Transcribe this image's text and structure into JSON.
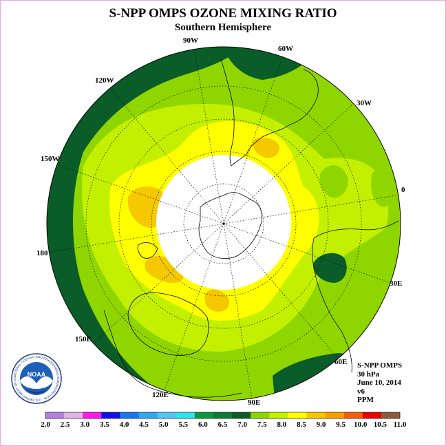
{
  "title": "S-NPP OMPS OZONE MIXING RATIO",
  "subtitle": "Southern Hemisphere",
  "longitude_labels": {
    "w90": "90W",
    "w60": "60W",
    "w30": "30W",
    "w120": "120W",
    "w150": "150W",
    "zero": "0",
    "d180": "180",
    "e30": "30E",
    "e60": "60E",
    "e90": "90E",
    "e120": "120E",
    "e150": "150E"
  },
  "info": {
    "instrument": "S-NPP OMPS",
    "level": "30 hPa",
    "date": "June 10, 2014",
    "version": "v6",
    "units": "PPM"
  },
  "logo": {
    "text": "NOAA",
    "ring_text": "NATIONAL OCEANIC AND ATMOSPHERIC ADMINISTRATION · U.S. DEPARTMENT OF COMMERCE"
  },
  "colorbar": {
    "labels": [
      "2.0",
      "2.5",
      "3.0",
      "3.5",
      "4.0",
      "4.5",
      "5.0",
      "5.5",
      "6.0",
      "6.5",
      "7.0",
      "7.5",
      "8.0",
      "8.5",
      "9.0",
      "9.5",
      "10.0",
      "10.5",
      "11.0"
    ],
    "colors": [
      "#b77ee0",
      "#dfb2ea",
      "#ff19e6",
      "#1010e6",
      "#1976ec",
      "#33a6ef",
      "#55c3f0",
      "#2fe3e8",
      "#0d9640",
      "#0e7c38",
      "#0a5c28",
      "#8fd600",
      "#c3f000",
      "#ffff00",
      "#f5c800",
      "#f5a000",
      "#f06010",
      "#e60000",
      "#8c5a3a"
    ]
  },
  "map_colors": {
    "c65_70": "#0a5c28",
    "c75_80": "#8fd600",
    "c80_85": "#c3f000",
    "c85_90": "#ffff00",
    "c90_95": "#f5c800",
    "no_data": "#ffffff"
  }
}
